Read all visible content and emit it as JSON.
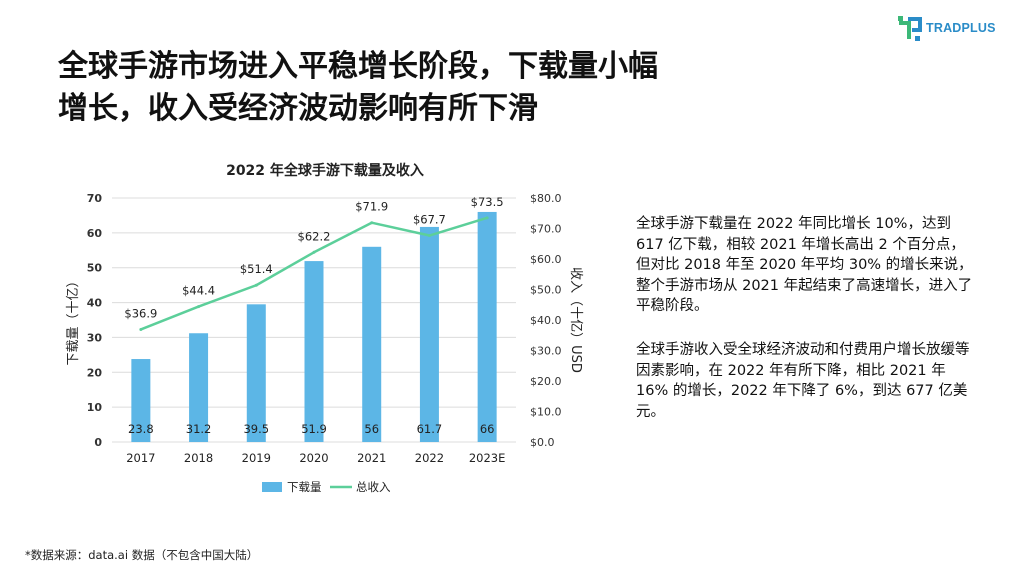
{
  "brand": {
    "name": "TRADPLUS",
    "accent": "#2a8cc8",
    "accent2": "#3cb878"
  },
  "title": {
    "line1": "全球手游市场进入平稳增长阶段，下载量小幅",
    "line2": "增长，收入受经济波动影响有所下滑"
  },
  "chart_data": {
    "type": "bar+line",
    "title": "2022 年全球手游下载量及收入",
    "categories": [
      "2017",
      "2018",
      "2019",
      "2020",
      "2021",
      "2022",
      "2023E"
    ],
    "series": [
      {
        "name": "下载量",
        "type": "bar",
        "axis": "left",
        "color": "#5cb6e6",
        "values": [
          23.8,
          31.2,
          39.5,
          51.9,
          56,
          61.7,
          66
        ],
        "labels": [
          "23.8",
          "31.2",
          "39.5",
          "51.9",
          "56",
          "61.7",
          "66"
        ]
      },
      {
        "name": "总收入",
        "type": "line",
        "axis": "right",
        "color": "#5ccf9a",
        "values": [
          36.9,
          44.4,
          51.4,
          62.2,
          71.9,
          67.7,
          73.5
        ],
        "labels": [
          "$36.9",
          "$44.4",
          "$51.4",
          "$62.2",
          "$71.9",
          "$67.7",
          "$73.5"
        ]
      }
    ],
    "ylabel": "下载量（十亿）",
    "y2label": "收入（十亿）USD",
    "ylim": [
      0,
      70
    ],
    "y2lim": [
      0,
      80
    ],
    "yticks": [
      "0",
      "10",
      "20",
      "30",
      "40",
      "50",
      "60",
      "70"
    ],
    "y2ticks": [
      "$0.0",
      "$10.0",
      "$20.0",
      "$30.0",
      "$40.0",
      "$50.0",
      "$60.0",
      "$70.0",
      "$80.0"
    ],
    "grid": true,
    "legend": "bottom"
  },
  "body": {
    "p1": "全球手游下载量在 2022 年同比增长 10%，达到 617 亿下载，相较 2021 年增长高出 2 个百分点，但对比 2018 年至 2020 年平均 30% 的增长来说，整个手游市场从 2021 年起结束了高速增长，进入了平稳阶段。",
    "p2": "全球手游收入受全球经济波动和付费用户增长放缓等因素影响，在 2022 年有所下降，相比 2021 年 16% 的增长，2022 年下降了 6%，到达 677 亿美元。"
  },
  "source": "*数据来源：data.ai 数据（不包含中国大陆）"
}
